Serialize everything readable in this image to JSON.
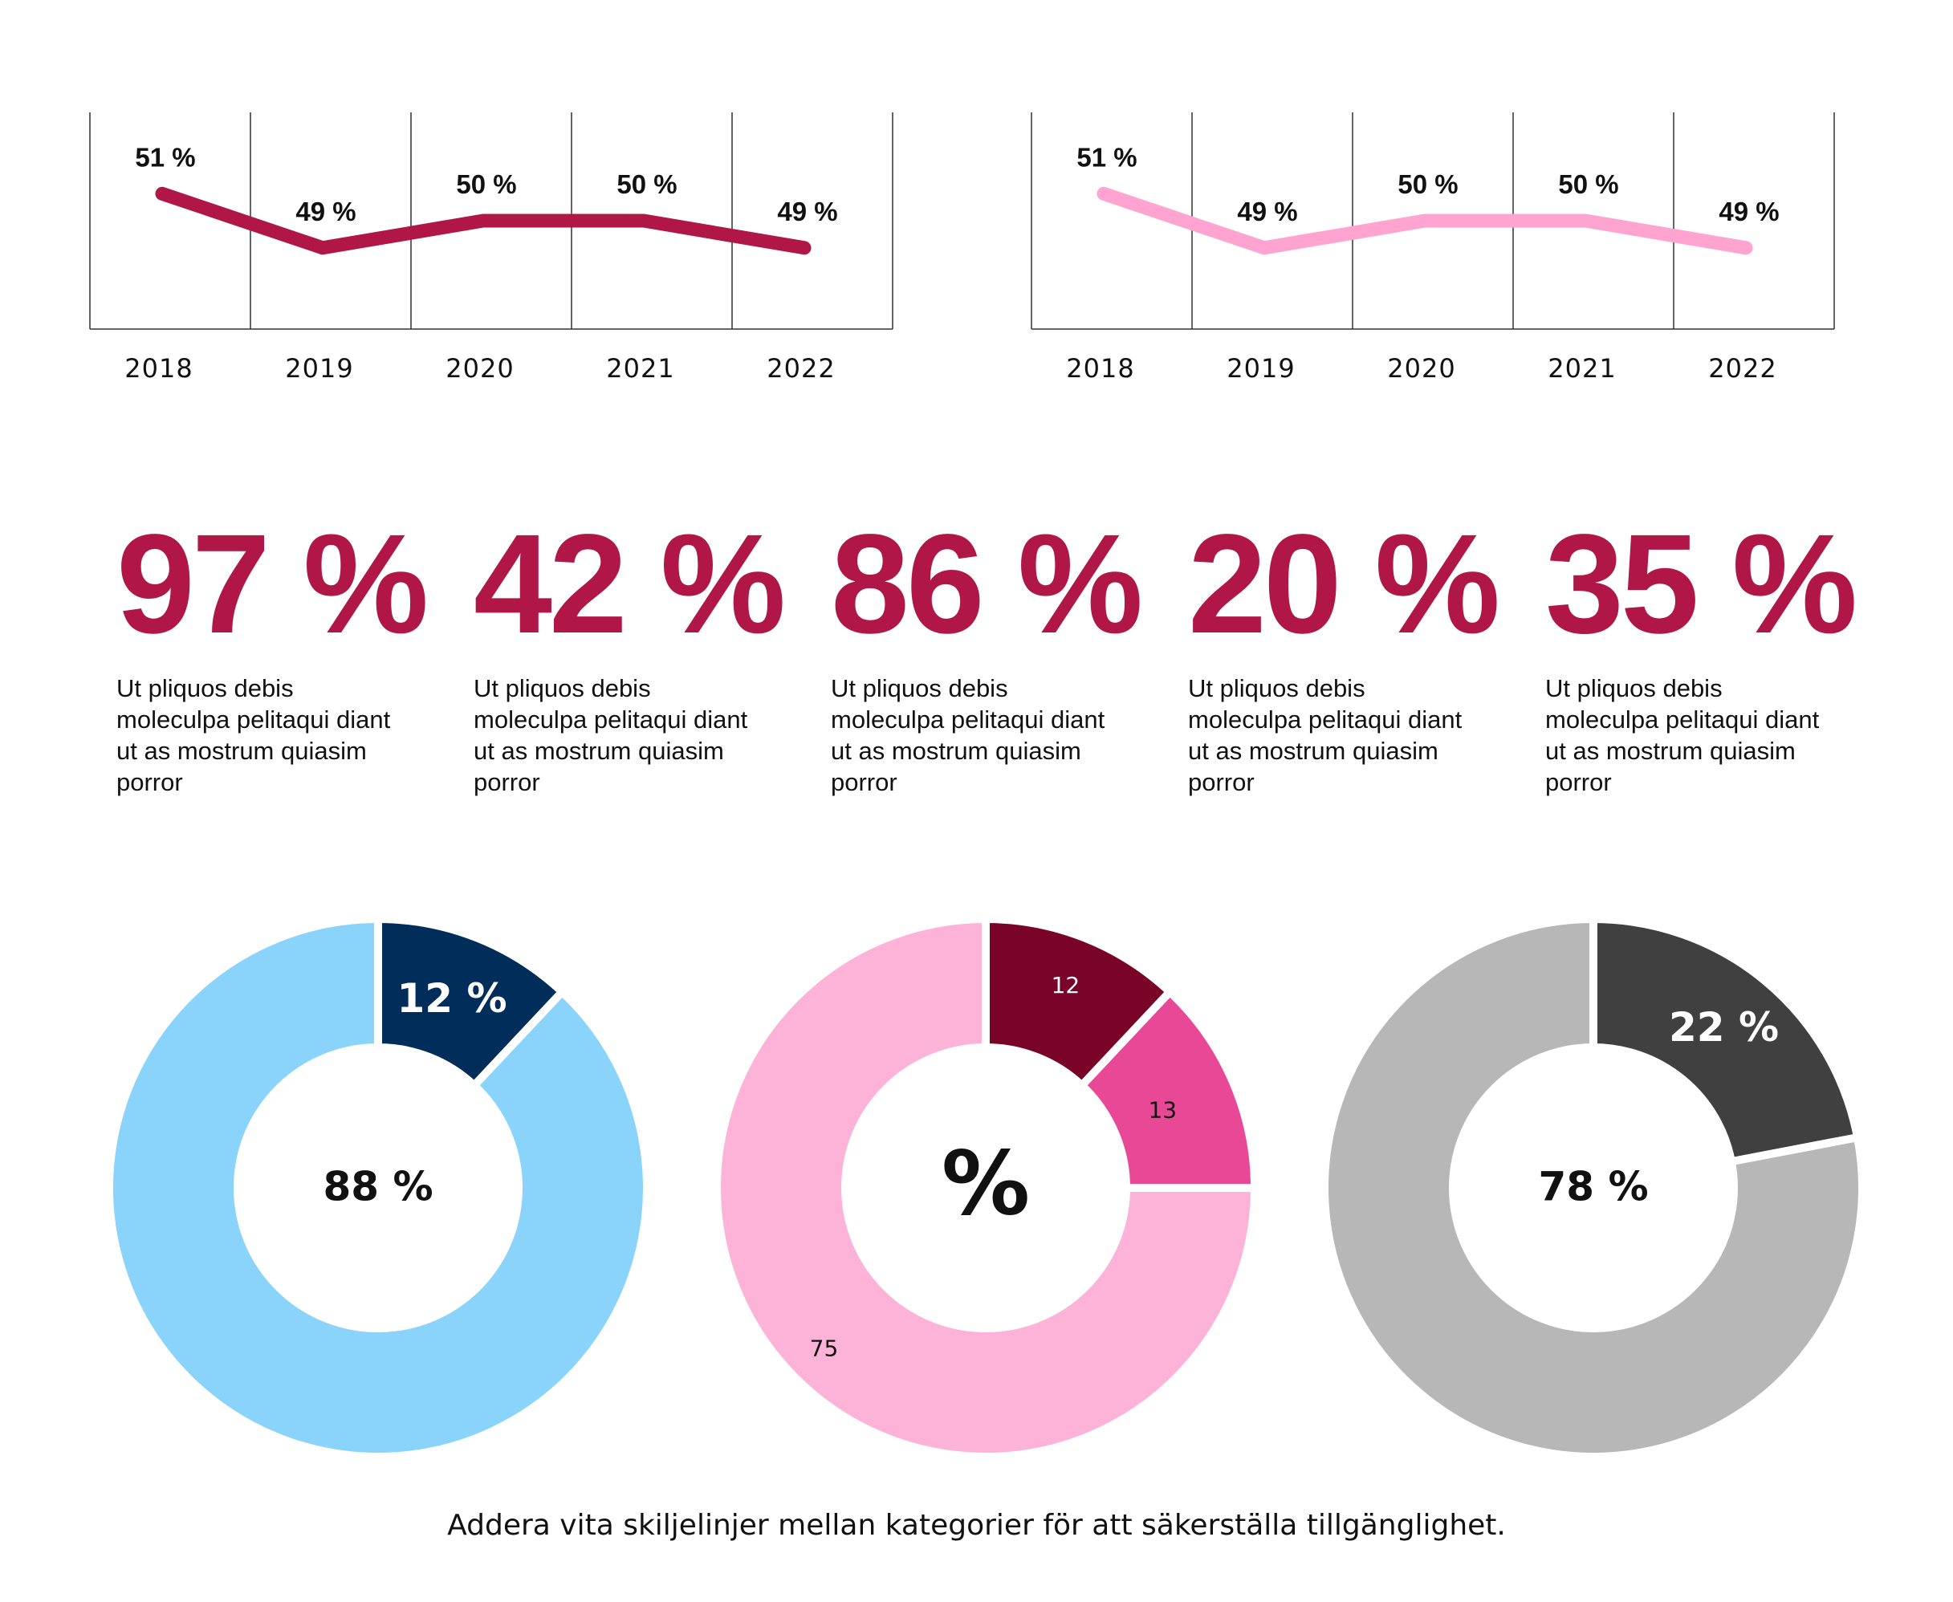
{
  "chart_data": [
    {
      "type": "line",
      "x": [
        "2018",
        "2019",
        "2020",
        "2021",
        "2022"
      ],
      "series": [
        {
          "values": [
            51,
            49,
            50,
            50,
            49
          ],
          "labels": [
            "51 %",
            "49 %",
            "50 %",
            "50 %",
            "49 %"
          ]
        }
      ],
      "ylim": [
        46,
        54
      ],
      "color": "#b01747",
      "grid": "vertical"
    },
    {
      "type": "line",
      "x": [
        "2018",
        "2019",
        "2020",
        "2021",
        "2022"
      ],
      "series": [
        {
          "values": [
            51,
            49,
            50,
            50,
            49
          ],
          "labels": [
            "51 %",
            "49 %",
            "50 %",
            "50 %",
            "49 %"
          ]
        }
      ],
      "ylim": [
        46,
        54
      ],
      "color": "#ffa4d0",
      "grid": "vertical"
    },
    {
      "type": "pie",
      "donut": true,
      "slices": [
        {
          "value": 12,
          "label": "12 %",
          "color": "#002d59"
        },
        {
          "value": 88,
          "label": "",
          "color": "#8ad3fa"
        }
      ],
      "center_label": "88 %"
    },
    {
      "type": "pie",
      "donut": true,
      "slices": [
        {
          "value": 12,
          "label": "12",
          "color": "#7a0427"
        },
        {
          "value": 13,
          "label": "13",
          "color": "#e84896"
        },
        {
          "value": 75,
          "label": "75",
          "color": "#fdb3d8"
        }
      ],
      "center_label": "%"
    },
    {
      "type": "pie",
      "donut": true,
      "slices": [
        {
          "value": 22,
          "label": "22 %",
          "color": "#404040"
        },
        {
          "value": 78,
          "label": "",
          "color": "#b8b7b8"
        }
      ],
      "center_label": "78 %"
    }
  ],
  "stats": [
    {
      "value": "97 %",
      "text": "Ut pliquos debis moleculpa pelitaqui diant ut as mostrum quiasim porror"
    },
    {
      "value": "42 %",
      "text": "Ut pliquos debis moleculpa pelitaqui diant ut as mostrum quiasim porror"
    },
    {
      "value": "86 %",
      "text": "Ut pliquos debis moleculpa pelitaqui diant ut as mostrum quiasim porror"
    },
    {
      "value": "20 %",
      "text": "Ut pliquos debis moleculpa pelitaqui diant ut as mostrum quiasim porror"
    },
    {
      "value": "35 %",
      "text": "Ut pliquos debis moleculpa pelitaqui diant ut as mostrum quiasim porror"
    }
  ],
  "footnote": "Addera vita skiljelinjer mellan kategorier för att säkerställa tillgänglighet.",
  "colors": {
    "accent": "#b01747",
    "text": "#111111"
  }
}
